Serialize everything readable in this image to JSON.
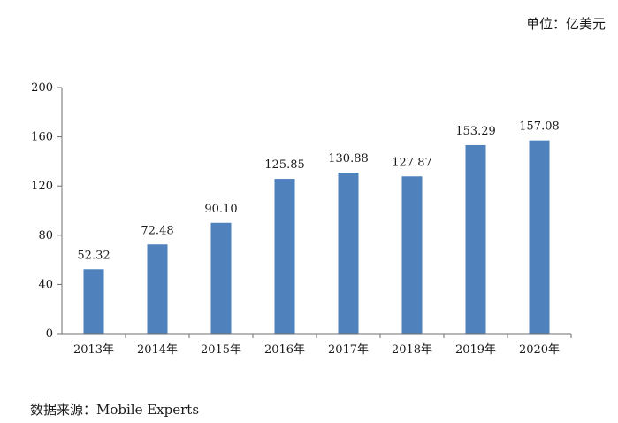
{
  "unit_label": "单位：亿美元",
  "source_label": "数据来源：Mobile Experts",
  "chart_data": {
    "type": "bar",
    "title": "",
    "xlabel": "",
    "ylabel": "",
    "categories": [
      "2013年",
      "2014年",
      "2015年",
      "2016年",
      "2017年",
      "2018年",
      "2019年",
      "2020年"
    ],
    "values": [
      52.32,
      72.48,
      90.1,
      125.85,
      130.88,
      127.87,
      153.29,
      157.08
    ],
    "value_labels": [
      "52.32",
      "72.48",
      "90.10",
      "125.85",
      "130.88",
      "127.87",
      "153.29",
      "157.08"
    ],
    "ylim": [
      0,
      200
    ],
    "yticks": [
      0,
      40,
      80,
      120,
      160,
      200
    ],
    "grid": false,
    "color": "#4f81bd"
  }
}
